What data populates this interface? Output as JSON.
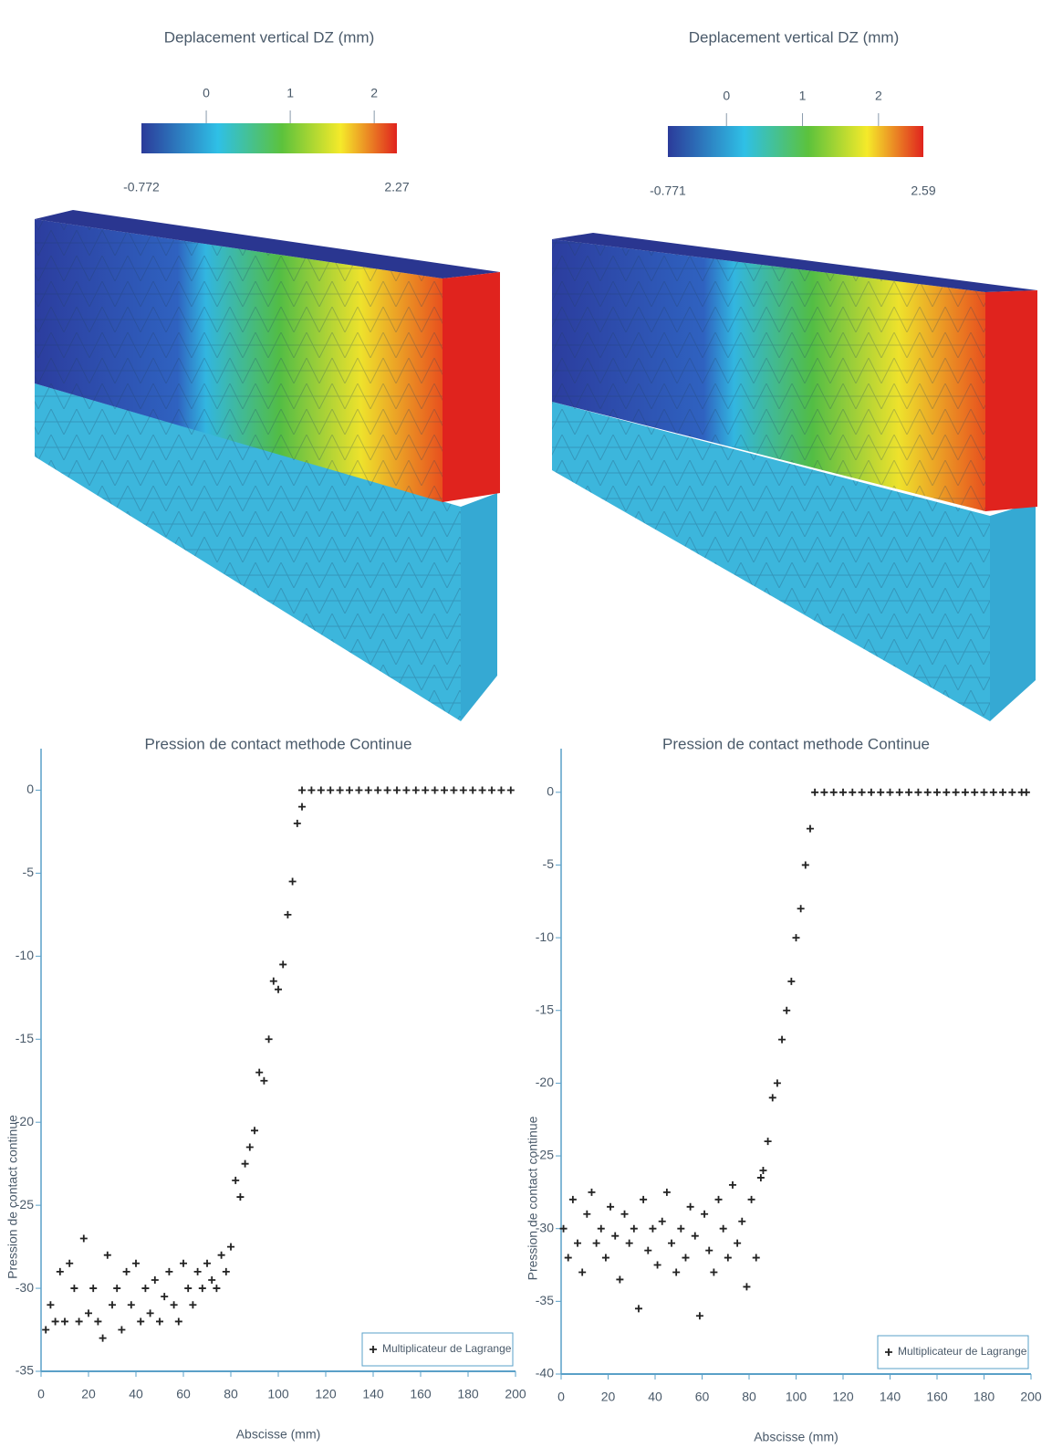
{
  "chart_data": [
    {
      "type": "colorbar",
      "title": "Deplacement vertical DZ (mm)",
      "clim": [
        -0.772,
        2.27
      ],
      "ticks": [
        0,
        1,
        2
      ]
    },
    {
      "type": "colorbar",
      "title": "Deplacement vertical DZ (mm)",
      "clim": [
        -0.771,
        2.59
      ],
      "ticks": [
        0,
        1,
        2
      ]
    },
    {
      "type": "scatter",
      "title": "Pression de contact methode Continue",
      "x_label": "Abscisse (mm)",
      "y_label": "Pression de contact continue",
      "xlim": [
        0,
        200
      ],
      "ylim": [
        -35,
        2.5
      ],
      "xticks": [
        0,
        20,
        40,
        60,
        80,
        100,
        120,
        140,
        160,
        180,
        200
      ],
      "yticks": [
        0,
        -5,
        -10,
        -15,
        -20,
        -25,
        -30,
        -35
      ],
      "series": [
        {
          "name": "Multiplicateur de Lagrange",
          "color": "#222222",
          "x": [
            2,
            4,
            6,
            8,
            10,
            12,
            14,
            16,
            18,
            20,
            22,
            24,
            26,
            28,
            30,
            32,
            34,
            36,
            38,
            40,
            42,
            44,
            46,
            48,
            50,
            52,
            54,
            56,
            58,
            60,
            62,
            64,
            66,
            68,
            70,
            72,
            74,
            76,
            78,
            80,
            82,
            84,
            86,
            88,
            90,
            92,
            94,
            96,
            98,
            100,
            102,
            104,
            106,
            108,
            110,
            110,
            114,
            118,
            122,
            126,
            130,
            134,
            138,
            142,
            146,
            150,
            154,
            158,
            162,
            166,
            170,
            174,
            178,
            182,
            186,
            190,
            194,
            198
          ],
          "values": [
            -32.5,
            -31,
            -32,
            -29,
            -32,
            -28.5,
            -30,
            -32,
            -27,
            -31.5,
            -30,
            -32,
            -33,
            -28,
            -31,
            -30,
            -32.5,
            -29,
            -31,
            -28.5,
            -32,
            -30,
            -31.5,
            -29.5,
            -32,
            -30.5,
            -29,
            -31,
            -32,
            -28.5,
            -30,
            -31,
            -29,
            -30,
            -28.5,
            -29.5,
            -30,
            -28,
            -29,
            -27.5,
            -23.5,
            -24.5,
            -22.5,
            -21.5,
            -20.5,
            -17,
            -17.5,
            -15,
            -11.5,
            -12,
            -10.5,
            -7.5,
            -5.5,
            -2,
            -1,
            0,
            0,
            0,
            0,
            0,
            0,
            0,
            0,
            0,
            0,
            0,
            0,
            0,
            0,
            0,
            0,
            0,
            0,
            0,
            0,
            0,
            0,
            0
          ]
        }
      ],
      "legend": "lower right"
    },
    {
      "type": "scatter",
      "title": "Pression de contact methode Continue",
      "x_label": "Abscisse (mm)",
      "y_label": "Pression de contact continue",
      "xlim": [
        0,
        200
      ],
      "ylim": [
        -40,
        3
      ],
      "xticks": [
        0,
        20,
        40,
        60,
        80,
        100,
        120,
        140,
        160,
        180,
        200
      ],
      "yticks": [
        0,
        -5,
        -10,
        -15,
        -20,
        -25,
        -30,
        -35,
        -40
      ],
      "series": [
        {
          "name": "Multiplicateur de Lagrange",
          "color": "#222222",
          "x": [
            1,
            3,
            5,
            7,
            9,
            11,
            13,
            15,
            17,
            19,
            21,
            23,
            25,
            27,
            29,
            31,
            33,
            35,
            37,
            39,
            41,
            43,
            45,
            47,
            49,
            51,
            53,
            55,
            57,
            59,
            61,
            63,
            65,
            67,
            69,
            71,
            73,
            75,
            77,
            79,
            81,
            83,
            85,
            86,
            88,
            90,
            92,
            94,
            96,
            98,
            100,
            102,
            104,
            106,
            108,
            112,
            116,
            120,
            124,
            128,
            132,
            136,
            140,
            144,
            148,
            152,
            156,
            160,
            164,
            168,
            172,
            176,
            180,
            184,
            188,
            192,
            196,
            198
          ],
          "values": [
            -30,
            -32,
            -28,
            -31,
            -33,
            -29,
            -27.5,
            -31,
            -30,
            -32,
            -28.5,
            -30.5,
            -33.5,
            -29,
            -31,
            -30,
            -35.5,
            -28,
            -31.5,
            -30,
            -32.5,
            -29.5,
            -27.5,
            -31,
            -33,
            -30,
            -32,
            -28.5,
            -30.5,
            -36,
            -29,
            -31.5,
            -33,
            -28,
            -30,
            -32,
            -27,
            -31,
            -29.5,
            -34,
            -28,
            -32,
            -26.5,
            -26,
            -24,
            -21,
            -20,
            -17,
            -15,
            -13,
            -10,
            -8,
            -5,
            -2.5,
            0,
            0,
            0,
            0,
            0,
            0,
            0,
            0,
            0,
            0,
            0,
            0,
            0,
            0,
            0,
            0,
            0,
            0,
            0,
            0,
            0,
            0,
            0,
            0
          ]
        }
      ],
      "legend": "lower right"
    }
  ]
}
